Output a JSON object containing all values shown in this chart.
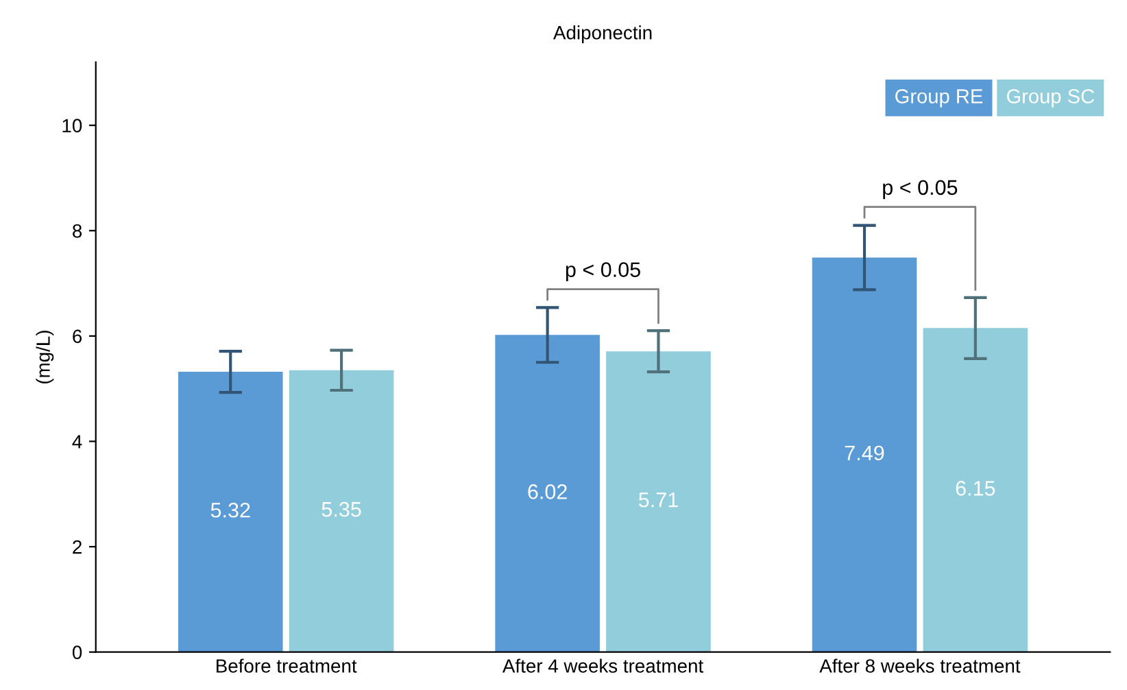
{
  "chart_data": {
    "type": "bar",
    "title": "Adiponectin",
    "ylabel": "(mg/L)",
    "categories": [
      "Before treatment",
      "After 4 weeks treatment",
      "After 8 weeks treatment"
    ],
    "series": [
      {
        "name": "Group RE",
        "color": "#5b9bd5",
        "values": [
          5.32,
          6.02,
          7.49
        ],
        "errors": [
          0.39,
          0.52,
          0.61
        ]
      },
      {
        "name": "Group SC",
        "color": "#92cddc",
        "values": [
          5.35,
          5.71,
          6.15
        ],
        "errors": [
          0.38,
          0.39,
          0.58
        ]
      }
    ],
    "ylim": [
      0,
      11.2
    ],
    "yticks": [
      0,
      2,
      4,
      6,
      8,
      10
    ],
    "grid": false,
    "legend": "top right",
    "data_labels": true,
    "annotations": [
      "p < 0.05",
      "p < 0.05"
    ]
  }
}
